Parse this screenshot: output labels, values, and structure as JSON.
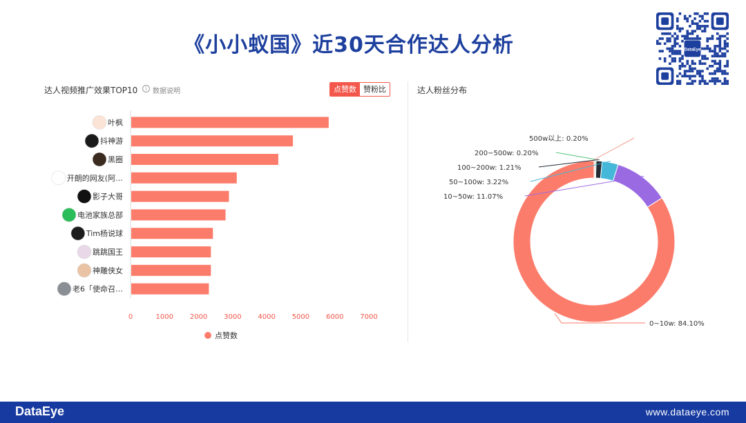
{
  "page": {
    "title": "《小小蚁国》近30天合作达人分析"
  },
  "qr": {
    "center_label": "DataEye"
  },
  "footer": {
    "logo": "DataEye",
    "url": "www.dataeye.com"
  },
  "bar_panel": {
    "title": "达人视频推广效果TOP10",
    "info_label": "数据说明",
    "toggle": {
      "active": "点赞数",
      "inactive": "赞粉比"
    }
  },
  "pie_panel": {
    "title": "达人粉丝分布"
  },
  "colors": {
    "bar": "#fc7c6b",
    "accent": "#f3564a",
    "brand_blue": "#1d3f9e",
    "footer_blue": "#163aa0"
  },
  "chart_data": [
    {
      "type": "bar",
      "orientation": "horizontal",
      "categories": [
        "叶枫",
        "抖神游",
        "黑圈",
        "开朗的网友(阿…",
        "影子大哥",
        "电池家族总部",
        "Tim杨说球",
        "跳跳国王",
        "神雕侠女",
        "老6「使命召…"
      ],
      "series": [
        {
          "name": "点赞数",
          "values": [
            5800,
            4750,
            4320,
            3100,
            2870,
            2770,
            2400,
            2340,
            2340,
            2280
          ]
        }
      ],
      "xticks": [
        "0",
        "1000",
        "2000",
        "3000",
        "4000",
        "5000",
        "6000",
        "7000"
      ],
      "xlim": [
        0,
        7000
      ],
      "legend": "bottom",
      "grid": false
    },
    {
      "type": "pie",
      "style": "donut",
      "slices": [
        {
          "label": "0~10w: 84.10%",
          "value": 84.1,
          "color": "#fc7c6b"
        },
        {
          "label": "10~50w: 11.07%",
          "value": 11.07,
          "color": "#9a6ae3"
        },
        {
          "label": "50~100w: 3.22%",
          "value": 3.22,
          "color": "#45b7d8"
        },
        {
          "label": "100~200w: 1.21%",
          "value": 1.21,
          "color": "#232b35"
        },
        {
          "label": "200~500w: 0.20%",
          "value": 0.2,
          "color": "#55c27c"
        },
        {
          "label": "500w以上: 0.20%",
          "value": 0.2,
          "color": "#f2a28e"
        }
      ]
    }
  ]
}
